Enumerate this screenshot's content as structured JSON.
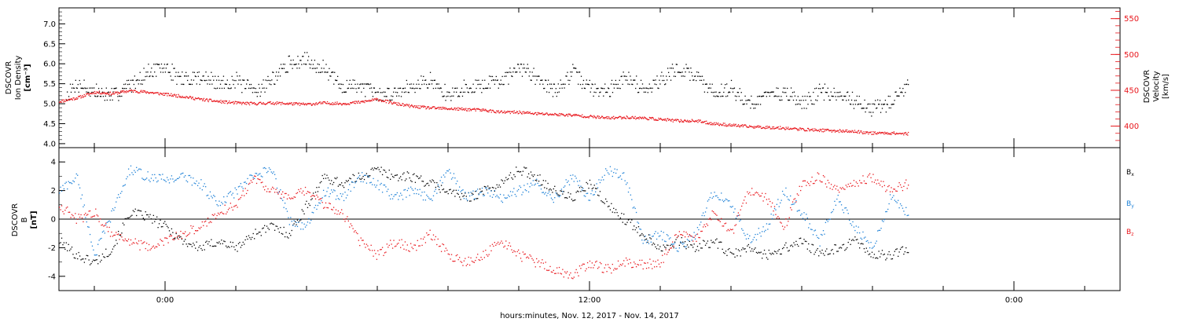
{
  "colors": {
    "density": "#000000",
    "velocity": "#e8141a",
    "bx": "#000000",
    "by": "#1a7fd6",
    "bz": "#e8141a",
    "axis": "#000000"
  },
  "x_axis": {
    "label": "hours:minutes, Nov. 12, 2017 - Nov. 14, 2017",
    "range_hours": [
      -3.0,
      27.0
    ],
    "major_ticks": [
      {
        "hour": 0,
        "label": "0:00"
      },
      {
        "hour": 12,
        "label": "12:00"
      },
      {
        "hour": 24,
        "label": "0:00"
      }
    ],
    "minor_tick_step_hours": 2
  },
  "chart_data": [
    {
      "type": "scatter",
      "panel": "plasma",
      "ylabel": [
        "DSCOVR",
        "Ion Density",
        "[cm⁻³]"
      ],
      "ylim": [
        3.9,
        7.4
      ],
      "yticks": [
        "4.0",
        "4.5",
        "5.0",
        "5.5",
        "6.0",
        "6.5",
        "7.0"
      ],
      "ytick_values": [
        4.0,
        4.5,
        5.0,
        5.5,
        6.0,
        6.5,
        7.0
      ],
      "y2label": [
        "DSCOVR",
        "Velocity",
        "[km/s]"
      ],
      "y2lim": [
        370,
        565
      ],
      "y2ticks": [
        "400",
        "450",
        "500",
        "550"
      ],
      "y2tick_values": [
        400,
        450,
        500,
        550
      ],
      "series": [
        {
          "key": "density",
          "axis": "left",
          "x": [
            -2.8,
            -2.5,
            -2.0,
            -1.5,
            -1.0,
            -0.5,
            0.0,
            0.5,
            1.0,
            1.5,
            2.0,
            2.5,
            3.0,
            3.5,
            4.0,
            4.5,
            5.0,
            5.5,
            6.0,
            6.5,
            7.0,
            7.5,
            8.0,
            8.5,
            9.0,
            9.5,
            10.0,
            10.5,
            11.0,
            11.5,
            12.0,
            12.5,
            13.0,
            13.5,
            14.0,
            14.5,
            15.0,
            15.5,
            16.0,
            16.5,
            17.0,
            17.5,
            18.0,
            18.5,
            19.0,
            19.5,
            20.0,
            20.5,
            21.0
          ],
          "y": [
            5.2,
            5.5,
            5.3,
            5.2,
            5.5,
            5.8,
            5.9,
            5.6,
            5.7,
            5.5,
            5.6,
            5.3,
            5.6,
            6.0,
            6.1,
            5.9,
            5.4,
            5.5,
            5.2,
            5.3,
            5.5,
            5.6,
            5.2,
            5.4,
            5.5,
            5.6,
            5.9,
            5.7,
            5.3,
            5.8,
            5.4,
            5.3,
            5.7,
            5.4,
            5.6,
            5.9,
            5.7,
            5.3,
            5.4,
            5.0,
            5.2,
            5.3,
            5.0,
            5.3,
            5.2,
            5.1,
            4.9,
            5.0,
            5.5
          ]
        },
        {
          "key": "velocity",
          "axis": "right",
          "x": [
            -3.0,
            -2.5,
            -2.0,
            -1.5,
            -1.0,
            -0.5,
            0.0,
            0.5,
            1.0,
            1.5,
            2.0,
            2.5,
            3.0,
            3.5,
            4.0,
            4.5,
            5.0,
            5.5,
            6.0,
            6.5,
            7.0,
            7.5,
            8.0,
            8.5,
            9.0,
            9.5,
            10.0,
            10.5,
            11.0,
            11.5,
            12.0,
            12.5,
            13.0,
            13.5,
            14.0,
            14.5,
            15.0,
            15.5,
            16.0,
            16.5,
            17.0,
            17.5,
            18.0,
            18.5,
            19.0,
            19.5,
            20.0,
            20.5,
            21.0
          ],
          "y": [
            435,
            440,
            448,
            446,
            450,
            448,
            445,
            442,
            438,
            435,
            433,
            432,
            433,
            432,
            431,
            433,
            432,
            434,
            438,
            432,
            428,
            426,
            425,
            424,
            423,
            420,
            420,
            418,
            417,
            416,
            414,
            412,
            413,
            412,
            410,
            408,
            408,
            404,
            402,
            400,
            399,
            398,
            396,
            395,
            394,
            393,
            391,
            391,
            390
          ]
        }
      ]
    },
    {
      "type": "scatter",
      "panel": "magnetic",
      "ylabel": [
        "DSCOVR",
        "B",
        "[nT]"
      ],
      "ylim": [
        -5.0,
        5.0
      ],
      "yticks": [
        "-4",
        "-2",
        "0",
        "2",
        "4"
      ],
      "ytick_values": [
        -4,
        -2,
        0,
        2,
        4
      ],
      "zero_line": true,
      "series": [
        {
          "key": "bx",
          "name": "Bx",
          "x": [
            -3.0,
            -2.5,
            -2.0,
            -1.5,
            -1.0,
            -0.5,
            0.0,
            0.5,
            1.0,
            1.5,
            2.0,
            2.5,
            3.0,
            3.5,
            4.0,
            4.5,
            5.0,
            5.5,
            6.0,
            6.5,
            7.0,
            7.5,
            8.0,
            8.5,
            9.0,
            9.5,
            10.0,
            10.5,
            11.0,
            11.5,
            12.0,
            12.5,
            13.0,
            13.5,
            14.0,
            14.5,
            15.0,
            15.5,
            16.0,
            16.5,
            17.0,
            17.5,
            18.0,
            18.5,
            19.0,
            19.5,
            20.0,
            20.5,
            21.0
          ],
          "y": [
            -1.5,
            -2.5,
            -3.0,
            -2.0,
            0.5,
            0.2,
            -0.5,
            -1.5,
            -2.0,
            -1.5,
            -2.0,
            -1.0,
            -0.5,
            -1.0,
            1.0,
            3.0,
            2.5,
            3.0,
            3.5,
            3.0,
            3.0,
            2.5,
            2.0,
            1.5,
            2.0,
            2.5,
            3.5,
            3.0,
            2.0,
            1.5,
            2.5,
            1.0,
            0.0,
            -1.0,
            -2.0,
            -1.5,
            -2.0,
            -1.5,
            -2.5,
            -2.0,
            -2.5,
            -2.0,
            -1.5,
            -2.5,
            -2.0,
            -1.5,
            -2.5,
            -2.5,
            -2.0
          ]
        },
        {
          "key": "by",
          "name": "By",
          "x": [
            -3.0,
            -2.5,
            -2.0,
            -1.5,
            -1.0,
            -0.5,
            0.0,
            0.5,
            1.0,
            1.5,
            2.0,
            2.5,
            3.0,
            3.5,
            4.0,
            4.5,
            5.0,
            5.5,
            6.0,
            6.5,
            7.0,
            7.5,
            8.0,
            8.5,
            9.0,
            9.5,
            10.0,
            10.5,
            11.0,
            11.5,
            12.0,
            12.5,
            13.0,
            13.5,
            14.0,
            14.5,
            15.0,
            15.5,
            16.0,
            16.5,
            17.0,
            17.5,
            18.0,
            18.5,
            19.0,
            19.5,
            20.0,
            20.5,
            21.0
          ],
          "y": [
            2.0,
            3.0,
            -2.5,
            0.5,
            3.5,
            3.0,
            2.8,
            3.0,
            2.5,
            1.0,
            2.0,
            3.0,
            3.5,
            0.0,
            -0.5,
            2.0,
            1.5,
            3.0,
            2.5,
            1.5,
            2.0,
            1.5,
            3.5,
            1.5,
            2.0,
            1.5,
            2.0,
            2.5,
            1.5,
            3.0,
            1.5,
            3.5,
            3.0,
            -1.5,
            -1.0,
            -2.0,
            -1.0,
            2.0,
            1.0,
            -1.5,
            -0.5,
            2.0,
            0.5,
            -1.5,
            1.5,
            -0.5,
            -2.0,
            1.5,
            0.5
          ]
        },
        {
          "key": "bz",
          "name": "Bz",
          "x": [
            -3.0,
            -2.5,
            -2.0,
            -1.5,
            -1.0,
            -0.5,
            0.0,
            0.5,
            1.0,
            1.5,
            2.0,
            2.5,
            3.0,
            3.5,
            4.0,
            4.5,
            5.0,
            5.5,
            6.0,
            6.5,
            7.0,
            7.5,
            8.0,
            8.5,
            9.0,
            9.5,
            10.0,
            10.5,
            11.0,
            11.5,
            12.0,
            12.5,
            13.0,
            13.5,
            14.0,
            14.5,
            15.0,
            15.5,
            16.0,
            16.5,
            17.0,
            17.5,
            18.0,
            18.5,
            19.0,
            19.5,
            20.0,
            20.5,
            21.0
          ],
          "y": [
            1.0,
            0.0,
            0.5,
            -1.0,
            -1.5,
            -2.0,
            -1.5,
            -1.0,
            -0.5,
            0.5,
            1.0,
            3.0,
            2.0,
            1.5,
            2.0,
            1.0,
            0.5,
            -1.5,
            -2.5,
            -1.5,
            -2.0,
            -1.0,
            -2.5,
            -3.0,
            -2.5,
            -1.5,
            -2.5,
            -3.0,
            -3.5,
            -4.0,
            -3.0,
            -3.5,
            -3.0,
            -3.2,
            -3.0,
            -1.0,
            -1.5,
            0.5,
            -1.0,
            2.0,
            1.5,
            -0.5,
            2.5,
            3.0,
            2.0,
            2.5,
            3.0,
            2.0,
            2.5
          ]
        }
      ],
      "legend": {
        "placement": "right",
        "entries": [
          {
            "key": "bx",
            "base": "B",
            "sub": "x"
          },
          {
            "key": "by",
            "base": "B",
            "sub": "y"
          },
          {
            "key": "bz",
            "base": "B",
            "sub": "z"
          }
        ]
      }
    }
  ]
}
